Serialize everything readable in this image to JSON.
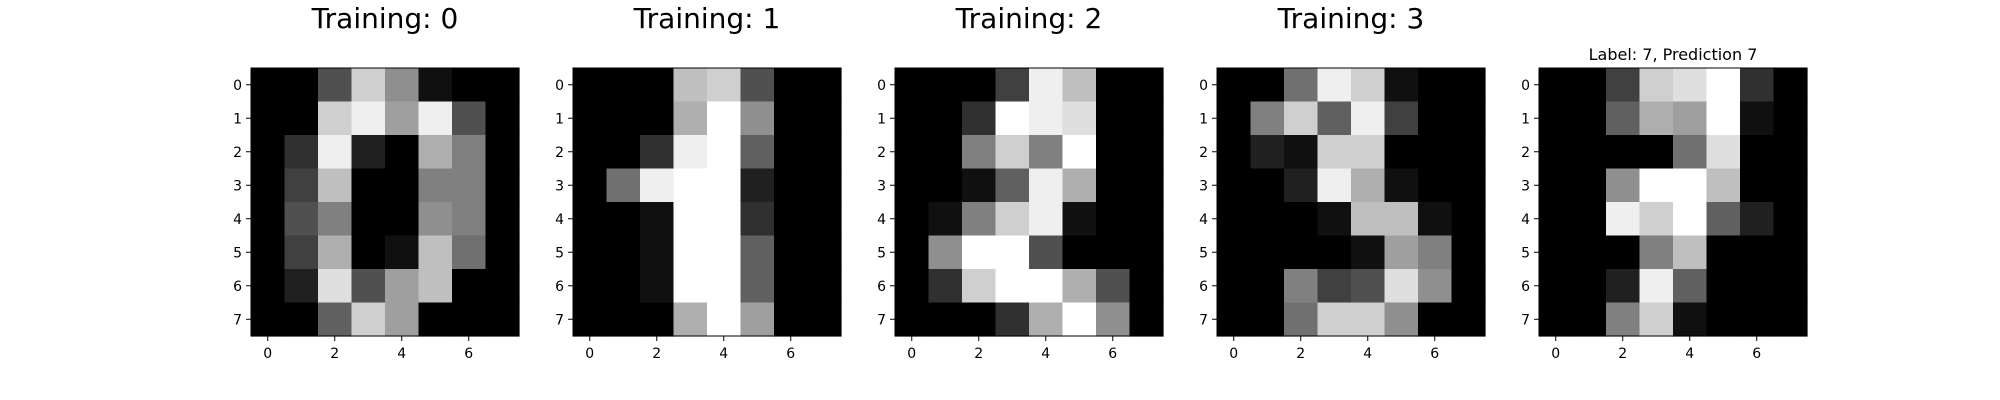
{
  "chart_data": [
    {
      "type": "heatmap",
      "title": "Training: 0",
      "colormap": "gray_r",
      "xticks": [
        "0",
        "2",
        "4",
        "6"
      ],
      "yticks": [
        "0",
        "1",
        "2",
        "3",
        "4",
        "5",
        "6",
        "7"
      ],
      "values": [
        [
          0,
          0,
          5,
          13,
          9,
          1,
          0,
          0
        ],
        [
          0,
          0,
          13,
          15,
          10,
          15,
          5,
          0
        ],
        [
          0,
          3,
          15,
          2,
          0,
          11,
          8,
          0
        ],
        [
          0,
          4,
          12,
          0,
          0,
          8,
          8,
          0
        ],
        [
          0,
          5,
          8,
          0,
          0,
          9,
          8,
          0
        ],
        [
          0,
          4,
          11,
          0,
          1,
          12,
          7,
          0
        ],
        [
          0,
          2,
          14,
          5,
          10,
          12,
          0,
          0
        ],
        [
          0,
          0,
          6,
          13,
          10,
          0,
          0,
          0
        ]
      ]
    },
    {
      "type": "heatmap",
      "title": "Training: 1",
      "colormap": "gray_r",
      "xticks": [
        "0",
        "2",
        "4",
        "6"
      ],
      "yticks": [
        "0",
        "1",
        "2",
        "3",
        "4",
        "5",
        "6",
        "7"
      ],
      "values": [
        [
          0,
          0,
          0,
          12,
          13,
          5,
          0,
          0
        ],
        [
          0,
          0,
          0,
          11,
          16,
          9,
          0,
          0
        ],
        [
          0,
          0,
          3,
          15,
          16,
          6,
          0,
          0
        ],
        [
          0,
          7,
          15,
          16,
          16,
          2,
          0,
          0
        ],
        [
          0,
          0,
          1,
          16,
          16,
          3,
          0,
          0
        ],
        [
          0,
          0,
          1,
          16,
          16,
          6,
          0,
          0
        ],
        [
          0,
          0,
          1,
          16,
          16,
          6,
          0,
          0
        ],
        [
          0,
          0,
          0,
          11,
          16,
          10,
          0,
          0
        ]
      ]
    },
    {
      "type": "heatmap",
      "title": "Training: 2",
      "colormap": "gray_r",
      "xticks": [
        "0",
        "2",
        "4",
        "6"
      ],
      "yticks": [
        "0",
        "1",
        "2",
        "3",
        "4",
        "5",
        "6",
        "7"
      ],
      "values": [
        [
          0,
          0,
          0,
          4,
          15,
          12,
          0,
          0
        ],
        [
          0,
          0,
          3,
          16,
          15,
          14,
          0,
          0
        ],
        [
          0,
          0,
          8,
          13,
          8,
          16,
          0,
          0
        ],
        [
          0,
          0,
          1,
          6,
          15,
          11,
          0,
          0
        ],
        [
          0,
          1,
          8,
          13,
          15,
          1,
          0,
          0
        ],
        [
          0,
          9,
          16,
          16,
          5,
          0,
          0,
          0
        ],
        [
          0,
          3,
          13,
          16,
          16,
          11,
          5,
          0
        ],
        [
          0,
          0,
          0,
          3,
          11,
          16,
          9,
          0
        ]
      ]
    },
    {
      "type": "heatmap",
      "title": "Training: 3",
      "colormap": "gray_r",
      "xticks": [
        "0",
        "2",
        "4",
        "6"
      ],
      "yticks": [
        "0",
        "1",
        "2",
        "3",
        "4",
        "5",
        "6",
        "7"
      ],
      "values": [
        [
          0,
          0,
          7,
          15,
          13,
          1,
          0,
          0
        ],
        [
          0,
          8,
          13,
          6,
          15,
          4,
          0,
          0
        ],
        [
          0,
          2,
          1,
          13,
          13,
          0,
          0,
          0
        ],
        [
          0,
          0,
          2,
          15,
          11,
          1,
          0,
          0
        ],
        [
          0,
          0,
          0,
          1,
          12,
          12,
          1,
          0
        ],
        [
          0,
          0,
          0,
          0,
          1,
          10,
          8,
          0
        ],
        [
          0,
          0,
          8,
          4,
          5,
          14,
          9,
          0
        ],
        [
          0,
          0,
          7,
          13,
          13,
          9,
          0,
          0
        ]
      ]
    },
    {
      "type": "heatmap",
      "title": "Label: 7, Prediction 7",
      "colormap": "gray_r",
      "xticks": [
        "0",
        "2",
        "4",
        "6"
      ],
      "yticks": [
        "0",
        "1",
        "2",
        "3",
        "4",
        "5",
        "6",
        "7"
      ],
      "values": [
        [
          0,
          0,
          4,
          13,
          14,
          16,
          3,
          0
        ],
        [
          0,
          0,
          6,
          11,
          10,
          16,
          1,
          0
        ],
        [
          0,
          0,
          0,
          0,
          7,
          14,
          0,
          0
        ],
        [
          0,
          0,
          9,
          16,
          16,
          12,
          0,
          0
        ],
        [
          0,
          0,
          15,
          13,
          16,
          6,
          2,
          0
        ],
        [
          0,
          0,
          0,
          8,
          12,
          0,
          0,
          0
        ],
        [
          0,
          0,
          2,
          15,
          6,
          0,
          0,
          0
        ],
        [
          0,
          0,
          8,
          13,
          1,
          0,
          0,
          0
        ]
      ]
    }
  ]
}
